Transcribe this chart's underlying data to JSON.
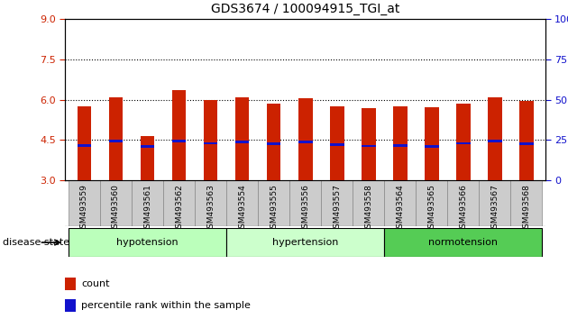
{
  "title": "GDS3674 / 100094915_TGI_at",
  "samples": [
    "GSM493559",
    "GSM493560",
    "GSM493561",
    "GSM493562",
    "GSM493563",
    "GSM493554",
    "GSM493555",
    "GSM493556",
    "GSM493557",
    "GSM493558",
    "GSM493564",
    "GSM493565",
    "GSM493566",
    "GSM493567",
    "GSM493568"
  ],
  "bar_heights": [
    5.75,
    6.1,
    4.65,
    6.35,
    5.98,
    6.1,
    5.85,
    6.05,
    5.75,
    5.7,
    5.75,
    5.72,
    5.85,
    6.1,
    5.95
  ],
  "blue_positions": [
    4.3,
    4.45,
    4.25,
    4.45,
    4.38,
    4.42,
    4.35,
    4.42,
    4.32,
    4.28,
    4.3,
    4.25,
    4.38,
    4.45,
    4.35
  ],
  "bar_bottom": 3.0,
  "ylim_left": [
    3.0,
    9.0
  ],
  "yticks_left": [
    3.0,
    4.5,
    6.0,
    7.5,
    9.0
  ],
  "yticks_right": [
    0,
    25,
    50,
    75,
    100
  ],
  "bar_color": "#CC2200",
  "blue_color": "#1111CC",
  "groups": [
    {
      "label": "hypotension",
      "start": 0,
      "end": 5,
      "color": "#BBFFBB"
    },
    {
      "label": "hypertension",
      "start": 5,
      "end": 10,
      "color": "#CCFFCC"
    },
    {
      "label": "normotension",
      "start": 10,
      "end": 15,
      "color": "#55CC55"
    }
  ],
  "legend_count_color": "#CC2200",
  "legend_pct_color": "#1111CC",
  "tick_label_color_left": "#CC2200",
  "tick_label_color_right": "#1111CC",
  "bar_width": 0.45,
  "gray_box_color": "#CCCCCC",
  "gray_box_edge": "#888888"
}
